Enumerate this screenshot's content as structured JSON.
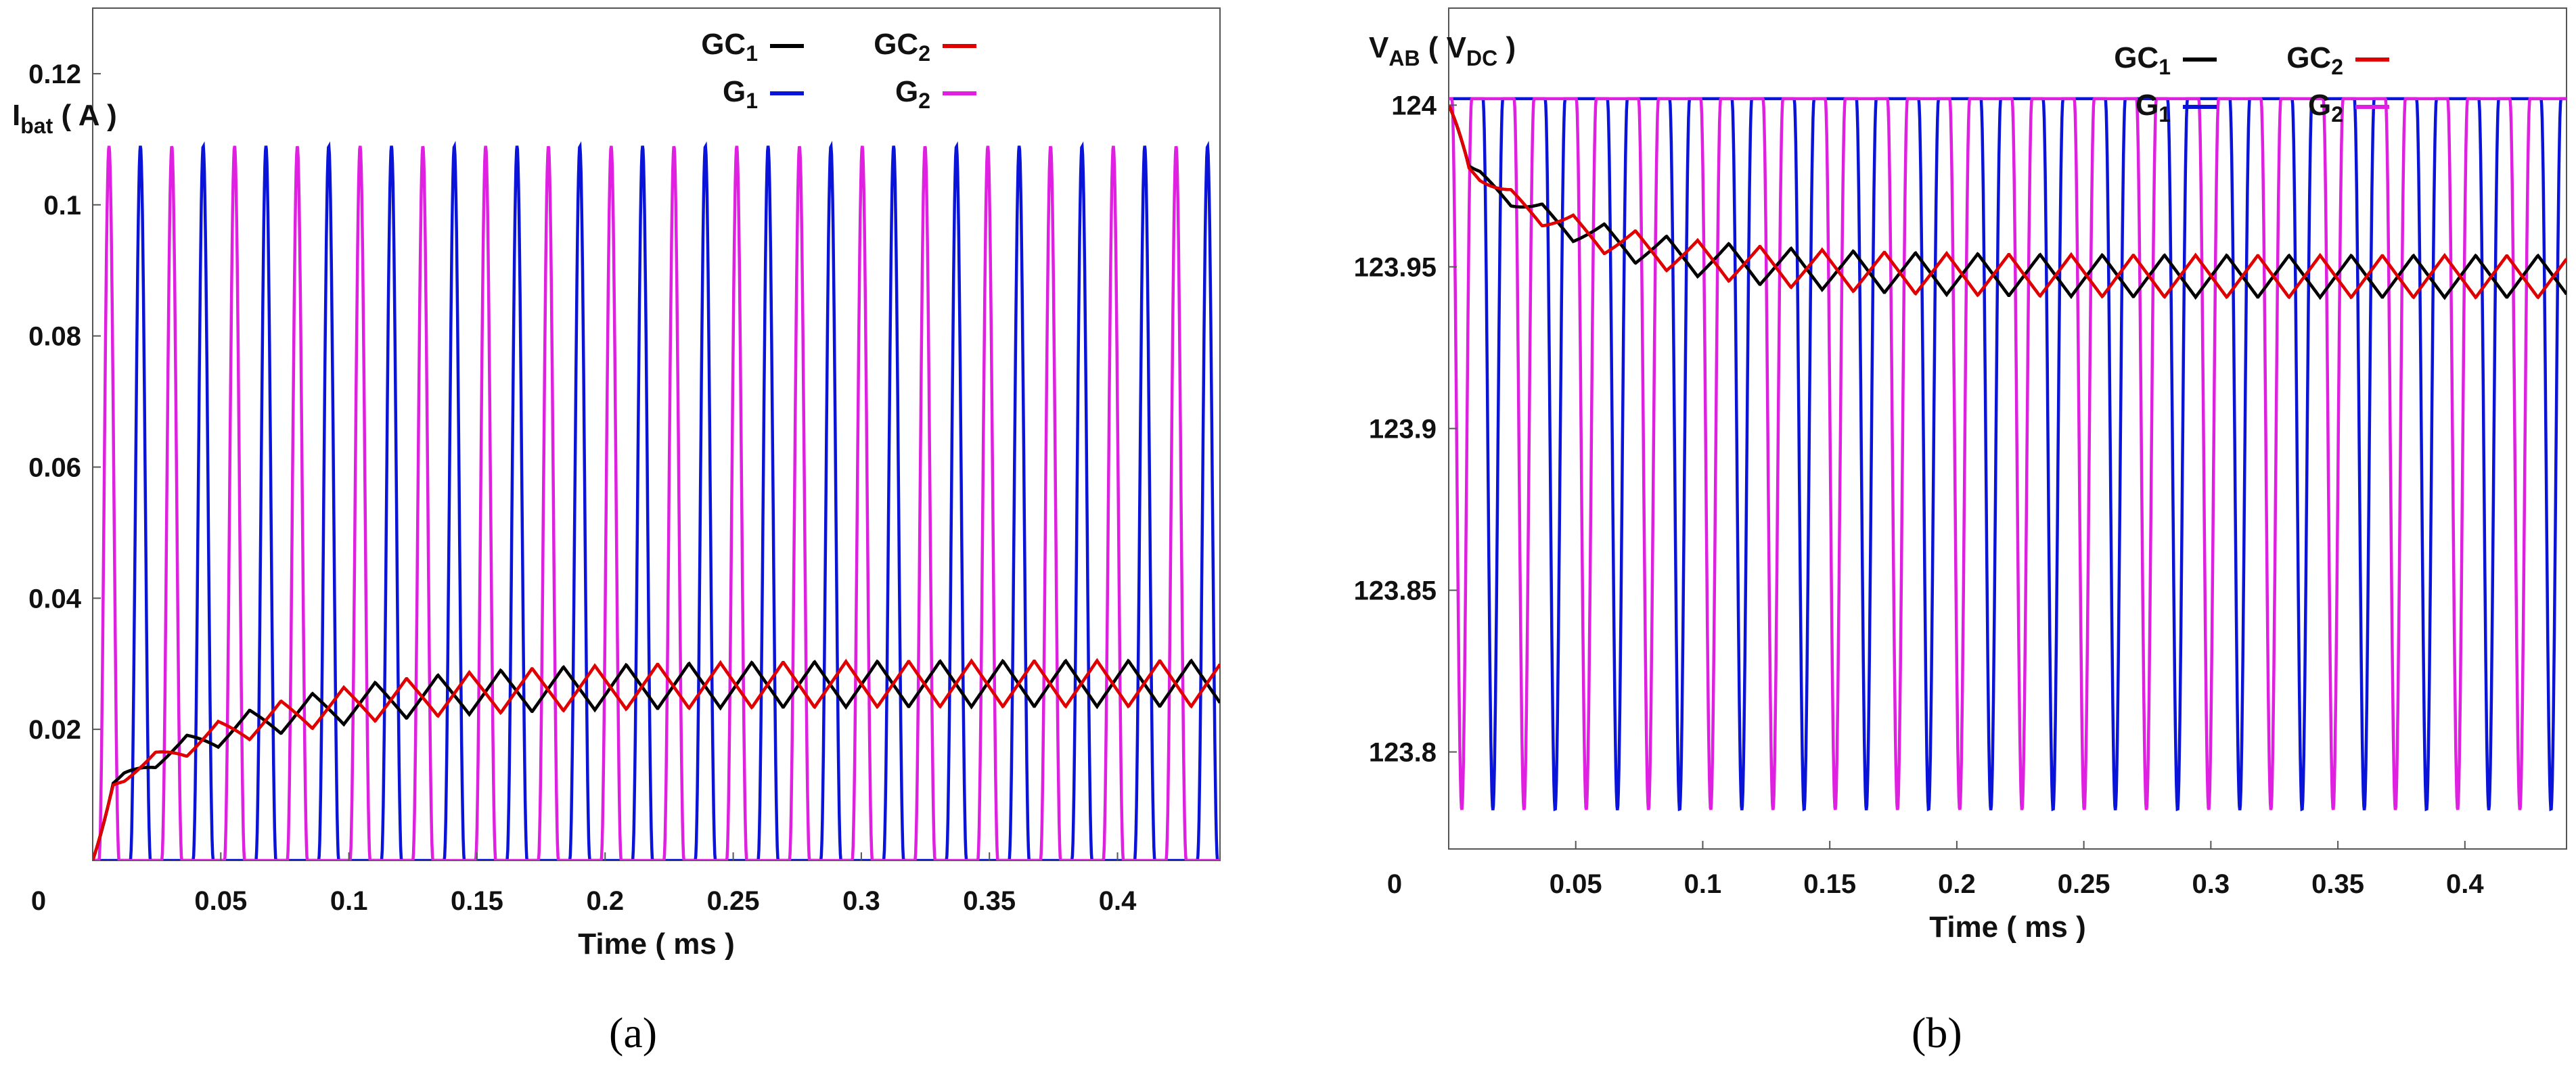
{
  "chart_data": [
    {
      "id": "a",
      "type": "line",
      "caption": "(a)",
      "xlabel": "Time ( ms )",
      "ylabel": {
        "main": "I",
        "sub": "bat",
        "unit": " ( A )"
      },
      "xlim": [
        0,
        0.44
      ],
      "ylim": [
        0,
        0.13
      ],
      "xticks": [
        {
          "v": 0,
          "label": "0"
        },
        {
          "v": 0.05,
          "label": "0.05"
        },
        {
          "v": 0.1,
          "label": "0.1"
        },
        {
          "v": 0.15,
          "label": "0.15"
        },
        {
          "v": 0.2,
          "label": "0.2"
        },
        {
          "v": 0.25,
          "label": "0.25"
        },
        {
          "v": 0.3,
          "label": "0.3"
        },
        {
          "v": 0.35,
          "label": "0.35"
        },
        {
          "v": 0.4,
          "label": "0.4"
        }
      ],
      "yticks": [
        {
          "v": 0.02,
          "label": "0.02"
        },
        {
          "v": 0.04,
          "label": "0.04"
        },
        {
          "v": 0.06,
          "label": "0.06"
        },
        {
          "v": 0.08,
          "label": "0.08"
        },
        {
          "v": 0.1,
          "label": "0.1"
        },
        {
          "v": 0.12,
          "label": "0.12"
        }
      ],
      "period": 0.0245,
      "series": [
        {
          "name": "GC",
          "sub": "1",
          "color": "#000000",
          "kind": "ripple",
          "steady_mean": 0.027,
          "amp": 0.0035,
          "phase": 0.0,
          "tau": 0.06
        },
        {
          "name": "GC",
          "sub": "2",
          "color": "#e00000",
          "kind": "ripple",
          "steady_mean": 0.027,
          "amp": 0.0035,
          "phase": 0.5,
          "tau": 0.06
        },
        {
          "name": "G",
          "sub": "1",
          "color": "#0a14d8",
          "kind": "pulse",
          "low": 0.0,
          "high": 0.109,
          "phase": 0.6,
          "width": 0.32
        },
        {
          "name": "G",
          "sub": "2",
          "color": "#e020e0",
          "kind": "pulse",
          "low": 0.0,
          "high": 0.109,
          "phase": 0.1,
          "width": 0.32
        }
      ]
    },
    {
      "id": "b",
      "type": "line",
      "caption": "(b)",
      "xlabel": "Time ( ms )",
      "ylabel": {
        "main": "V",
        "sub": "AB",
        "unit": " ( V",
        "unit_sub": "DC",
        "unit_end": " )"
      },
      "xlim": [
        0,
        0.44
      ],
      "ylim": [
        123.77,
        124.03
      ],
      "xticks": [
        {
          "v": 0,
          "label": "0"
        },
        {
          "v": 0.05,
          "label": "0.05"
        },
        {
          "v": 0.1,
          "label": "0.1"
        },
        {
          "v": 0.15,
          "label": "0.15"
        },
        {
          "v": 0.2,
          "label": "0.2"
        },
        {
          "v": 0.25,
          "label": "0.25"
        },
        {
          "v": 0.3,
          "label": "0.3"
        },
        {
          "v": 0.35,
          "label": "0.35"
        },
        {
          "v": 0.4,
          "label": "0.4"
        }
      ],
      "yticks": [
        {
          "v": 123.8,
          "label": "123.8"
        },
        {
          "v": 123.85,
          "label": "123.85"
        },
        {
          "v": 123.9,
          "label": "123.9"
        },
        {
          "v": 123.95,
          "label": "123.95"
        },
        {
          "v": 124,
          "label": "124"
        }
      ],
      "period": 0.0245,
      "series": [
        {
          "name": "GC",
          "sub": "1",
          "color": "#000000",
          "kind": "ripple_down",
          "start": 124.0,
          "steady_mean": 123.947,
          "amp": 0.0065,
          "phase": 0.0,
          "tau": 0.05
        },
        {
          "name": "GC",
          "sub": "2",
          "color": "#e00000",
          "kind": "ripple_down",
          "start": 124.0,
          "steady_mean": 123.947,
          "amp": 0.0065,
          "phase": 0.5,
          "tau": 0.05
        },
        {
          "name": "G",
          "sub": "1",
          "color": "#0a14d8",
          "kind": "dip",
          "high": 124.002,
          "low": 123.782,
          "phase": 0.55,
          "width": 0.32
        },
        {
          "name": "G",
          "sub": "2",
          "color": "#e020e0",
          "kind": "dip",
          "high": 124.002,
          "low": 123.782,
          "phase": 0.05,
          "width": 0.32
        }
      ]
    }
  ]
}
